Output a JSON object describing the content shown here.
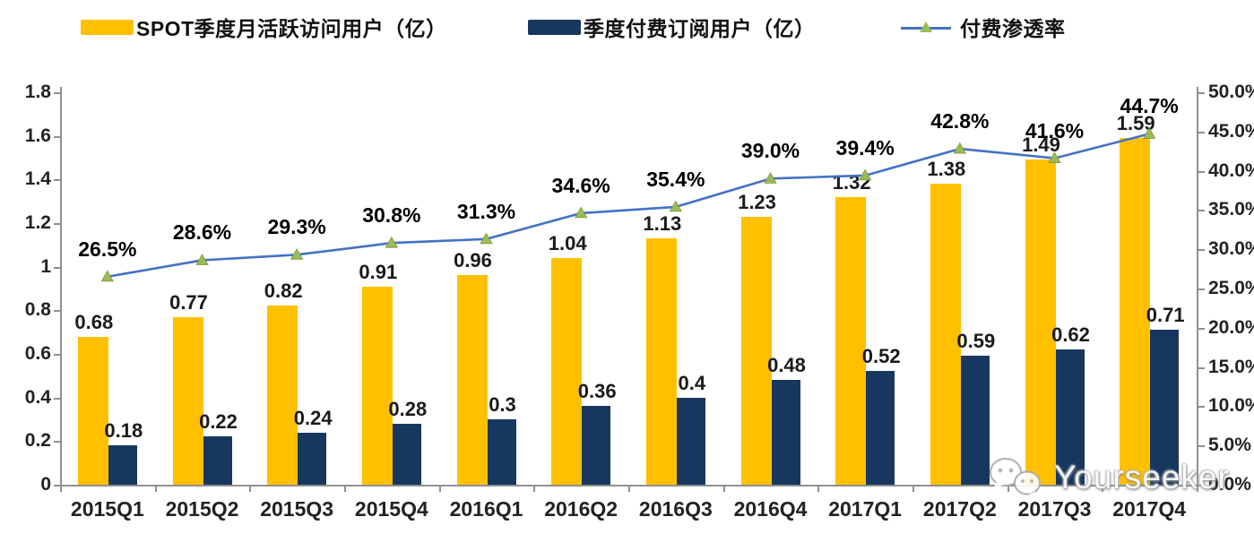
{
  "legend": [
    {
      "label": "SPOT季度月活跃访问用户（亿）",
      "type": "bar",
      "color": "#FFC000"
    },
    {
      "label": "季度付费订阅用户（亿）",
      "type": "bar",
      "color": "#17375E"
    },
    {
      "label": "付费渗透率",
      "type": "line",
      "color": "#4472C4",
      "marker_color": "#9BBB59"
    }
  ],
  "chart_data": {
    "type": "bar+line combo",
    "title": "",
    "categories": [
      "2015Q1",
      "2015Q2",
      "2015Q3",
      "2015Q4",
      "2016Q1",
      "2016Q2",
      "2016Q3",
      "2016Q4",
      "2017Q1",
      "2017Q2",
      "2017Q3",
      "2017Q4"
    ],
    "series": [
      {
        "name": "SPOT季度月活跃访问用户（亿）",
        "type": "bar",
        "axis": "left",
        "color": "#FFC000",
        "values": [
          0.68,
          0.77,
          0.82,
          0.91,
          0.96,
          1.04,
          1.13,
          1.23,
          1.32,
          1.38,
          1.49,
          1.59
        ],
        "labels": [
          "0.68",
          "0.77",
          "0.82",
          "0.91",
          "0.96",
          "1.04",
          "1.13",
          "1.23",
          "1.32",
          "1.38",
          "1.49",
          "1.59"
        ]
      },
      {
        "name": "季度付费订阅用户（亿）",
        "type": "bar",
        "axis": "left",
        "color": "#17375E",
        "values": [
          0.18,
          0.22,
          0.24,
          0.28,
          0.3,
          0.36,
          0.4,
          0.48,
          0.52,
          0.59,
          0.62,
          0.71
        ],
        "labels": [
          "0.18",
          "0.22",
          "0.24",
          "0.28",
          "0.3",
          "0.36",
          "0.4",
          "0.48",
          "0.52",
          "0.59",
          "0.62",
          "0.71"
        ]
      },
      {
        "name": "付费渗透率",
        "type": "line",
        "axis": "right",
        "color": "#4472C4",
        "marker": "triangle",
        "marker_color": "#9BBB59",
        "values": [
          26.5,
          28.6,
          29.3,
          30.8,
          31.3,
          34.6,
          35.4,
          39.0,
          39.4,
          42.8,
          41.6,
          44.7
        ],
        "labels": [
          "26.5%",
          "28.6%",
          "29.3%",
          "30.8%",
          "31.3%",
          "34.6%",
          "35.4%",
          "39.0%",
          "39.4%",
          "42.8%",
          "41.6%",
          "44.7%"
        ]
      }
    ],
    "left_axis": {
      "min": 0,
      "max": 1.8,
      "step": 0.2,
      "tick_labels_top_to_bottom": [
        "1.8",
        "1.6",
        "1.4",
        "1.2",
        "1",
        "0.8",
        "0.6",
        "0.4",
        "0.2",
        "0"
      ]
    },
    "right_axis": {
      "min": 0,
      "max": 50,
      "step": 5,
      "tick_labels_top_to_bottom": [
        "50.0%",
        "45.0%",
        "40.0%",
        "35.0%",
        "30.0%",
        "25.0%",
        "20.0%",
        "15.0%",
        "10.0%",
        "5.0%",
        "0.0%"
      ]
    },
    "grid": false,
    "legend_position": "top"
  },
  "watermark": {
    "text": "Yourseeker",
    "icon": "wechat-icon"
  }
}
